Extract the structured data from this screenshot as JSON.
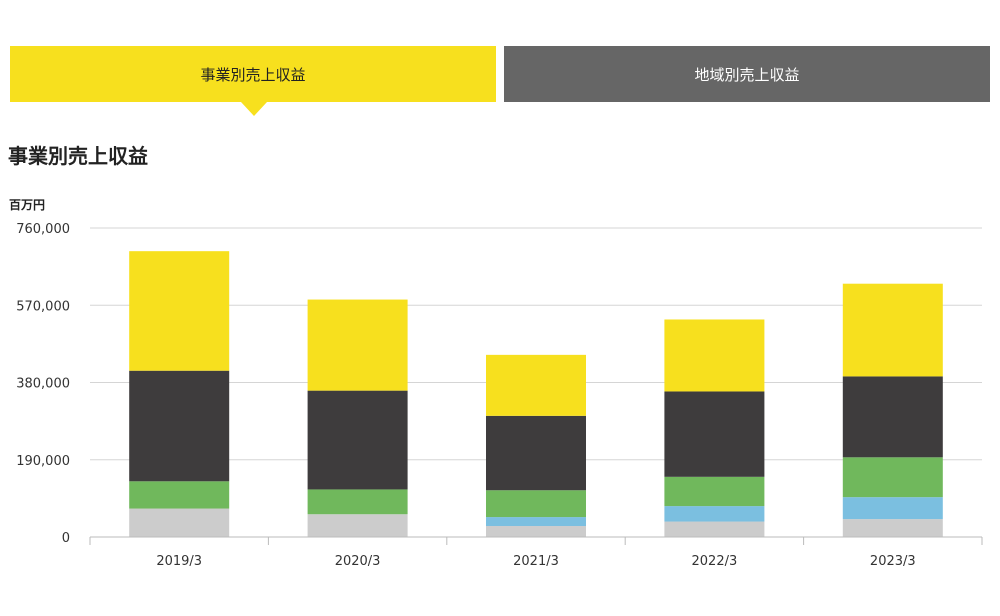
{
  "tabs": [
    {
      "label": "事業別売上収益",
      "active": true
    },
    {
      "label": "地域別売上収益",
      "active": false
    }
  ],
  "section_title": "事業別売上収益",
  "colors": {
    "active_tab": "#f7e01e",
    "inactive_tab": "#666666",
    "grid": "#d5d5d5",
    "axis": "#bbbbbb"
  },
  "chart_data": {
    "type": "bar",
    "stacked": true,
    "unit": "百万円",
    "categories": [
      "2019/3",
      "2020/3",
      "2021/3",
      "2022/3",
      "2023/3"
    ],
    "ylim": [
      0,
      760000
    ],
    "yticks": [
      0,
      190000,
      380000,
      570000,
      760000
    ],
    "ytick_labels": [
      "0",
      "190,000",
      "380,000",
      "570,000",
      "760,000"
    ],
    "grid": true,
    "series": [
      {
        "color": "#cccccc",
        "values": [
          70000,
          56000,
          27000,
          38000,
          44000
        ]
      },
      {
        "color": "#7bbfe0",
        "values": [
          0,
          0,
          22000,
          38000,
          54000
        ]
      },
      {
        "color": "#70b85c",
        "values": [
          67000,
          61000,
          66000,
          72000,
          98000
        ]
      },
      {
        "color": "#3e3c3d",
        "values": [
          272000,
          243000,
          183000,
          210000,
          199000
        ]
      },
      {
        "color": "#f7e01e",
        "values": [
          294000,
          224000,
          150000,
          177000,
          228000
        ]
      }
    ]
  }
}
